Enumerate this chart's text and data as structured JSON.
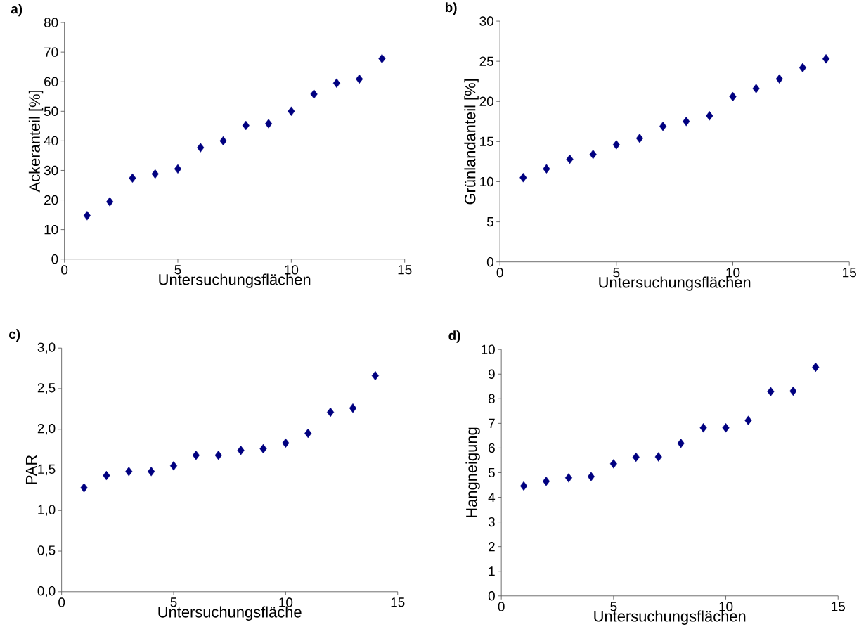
{
  "chart_data": [
    {
      "type": "scatter",
      "title": "a)",
      "xlabel": "Untersuchungsflächen",
      "ylabel": "Ackeranteil [%]",
      "x": [
        1,
        2,
        3,
        4,
        5,
        6,
        7,
        8,
        9,
        10,
        11,
        12,
        13,
        14
      ],
      "xlim": [
        0,
        15
      ],
      "xticks": [
        0,
        5,
        10,
        15
      ],
      "ylim": [
        0,
        80
      ],
      "yticks": [
        0,
        10,
        20,
        30,
        40,
        50,
        60,
        70,
        80
      ],
      "marker": "diamond",
      "series": [
        {
          "color": "#000080",
          "values": [
            14.7,
            19.4,
            27.4,
            28.8,
            30.5,
            37.7,
            40.0,
            45.2,
            45.8,
            50.0,
            55.8,
            59.5,
            60.9,
            67.8
          ]
        }
      ]
    },
    {
      "type": "scatter",
      "title": "b)",
      "xlabel": "Untersuchungsflächen",
      "ylabel": "Grünlandanteil [%]",
      "x": [
        1,
        2,
        3,
        4,
        5,
        6,
        7,
        8,
        9,
        10,
        11,
        12,
        13,
        14
      ],
      "xlim": [
        0,
        15
      ],
      "xticks": [
        0,
        5,
        10,
        15
      ],
      "ylim": [
        0,
        30
      ],
      "yticks": [
        0,
        5,
        10,
        15,
        20,
        25,
        30
      ],
      "marker": "diamond",
      "series": [
        {
          "color": "#000080",
          "values": [
            10.5,
            11.6,
            12.8,
            13.4,
            14.6,
            15.4,
            16.9,
            17.5,
            18.2,
            20.6,
            21.6,
            22.8,
            24.2,
            25.3
          ]
        }
      ]
    },
    {
      "type": "scatter",
      "title": "c)",
      "xlabel": "Untersuchungsfläche",
      "ylabel": "PAR",
      "x": [
        1,
        2,
        3,
        4,
        5,
        6,
        7,
        8,
        9,
        10,
        11,
        12,
        13,
        14
      ],
      "xlim": [
        0,
        15
      ],
      "xticks": [
        0,
        5,
        10,
        15
      ],
      "ylim": [
        0,
        3
      ],
      "yticks": [
        {
          "value": 0,
          "label": "0,0"
        },
        {
          "value": 0.5,
          "label": "0,5"
        },
        {
          "value": 1,
          "label": "1,0"
        },
        {
          "value": 1.5,
          "label": "1,5"
        },
        {
          "value": 2,
          "label": "2,0"
        },
        {
          "value": 2.5,
          "label": "2,5"
        },
        {
          "value": 3,
          "label": "3,0"
        }
      ],
      "marker": "diamond",
      "series": [
        {
          "color": "#000080",
          "values": [
            1.28,
            1.43,
            1.48,
            1.48,
            1.55,
            1.68,
            1.68,
            1.74,
            1.76,
            1.83,
            1.95,
            2.21,
            2.26,
            2.66
          ]
        }
      ]
    },
    {
      "type": "scatter",
      "title": "d)",
      "xlabel": "Untersuchungsflächen",
      "ylabel": "Hangneigung",
      "x": [
        1,
        2,
        3,
        4,
        5,
        6,
        7,
        8,
        9,
        10,
        11,
        12,
        13,
        14
      ],
      "xlim": [
        0,
        15
      ],
      "xticks": [
        0,
        5,
        10,
        15
      ],
      "ylim": [
        0,
        10
      ],
      "yticks": [
        0,
        1,
        2,
        3,
        4,
        5,
        6,
        7,
        8,
        9,
        10
      ],
      "marker": "diamond",
      "series": [
        {
          "color": "#000080",
          "values": [
            4.46,
            4.65,
            4.79,
            4.84,
            5.36,
            5.63,
            5.64,
            6.19,
            6.82,
            6.82,
            7.12,
            8.29,
            8.31,
            9.28
          ]
        }
      ]
    }
  ]
}
